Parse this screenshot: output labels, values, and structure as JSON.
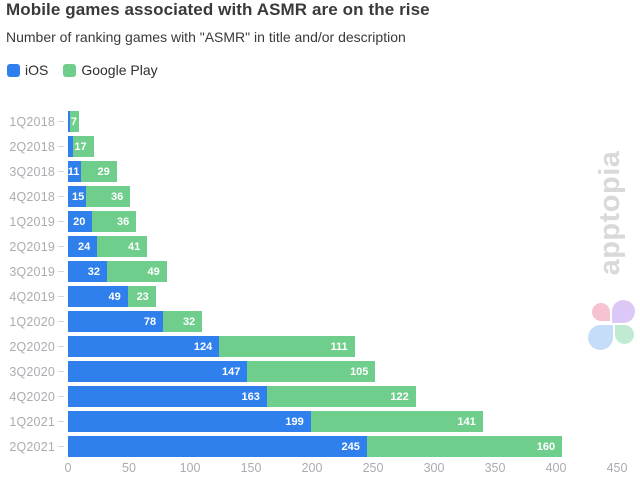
{
  "chart_data": {
    "type": "bar",
    "orientation": "horizontal",
    "stacked": true,
    "title": "Mobile games associated with ASMR are on the rise",
    "subtitle": "Number of ranking games with \"ASMR\" in title and/or description",
    "categories": [
      "1Q2018",
      "2Q2018",
      "3Q2018",
      "4Q2018",
      "1Q2019",
      "2Q2019",
      "3Q2019",
      "4Q2019",
      "1Q2020",
      "2Q2020",
      "3Q2020",
      "4Q2020",
      "1Q2021",
      "2Q2021"
    ],
    "series": [
      {
        "name": "iOS",
        "color": "#2f80ec",
        "values": [
          2,
          4,
          11,
          15,
          20,
          24,
          32,
          49,
          78,
          124,
          147,
          163,
          199,
          245
        ],
        "labels": [
          "",
          "",
          "11",
          "15",
          "20",
          "24",
          "32",
          "49",
          "78",
          "124",
          "147",
          "163",
          "199",
          "245"
        ]
      },
      {
        "name": "Google Play",
        "color": "#6fce8c",
        "values": [
          7,
          17,
          29,
          36,
          36,
          41,
          49,
          23,
          32,
          111,
          105,
          122,
          141,
          160
        ],
        "labels": [
          "7",
          "17",
          "29",
          "36",
          "36",
          "41",
          "49",
          "23",
          "32",
          "111",
          "105",
          "122",
          "141",
          "160"
        ]
      }
    ],
    "xlim": [
      0,
      450
    ],
    "xticks": [
      0,
      50,
      100,
      150,
      200,
      250,
      300,
      350,
      400,
      450
    ],
    "grid": false,
    "legend_position": "top-left",
    "value_label_color": "#ffffff",
    "axis_label_color": "#abacb1"
  },
  "watermark": {
    "text": "apptopia",
    "text_color": "#d9d9d9",
    "logo_petal_colors": {
      "pink": "#f6c3d0",
      "purple": "#dcc8f6",
      "blue": "#c5ddf8",
      "green": "#c0ead2"
    }
  }
}
